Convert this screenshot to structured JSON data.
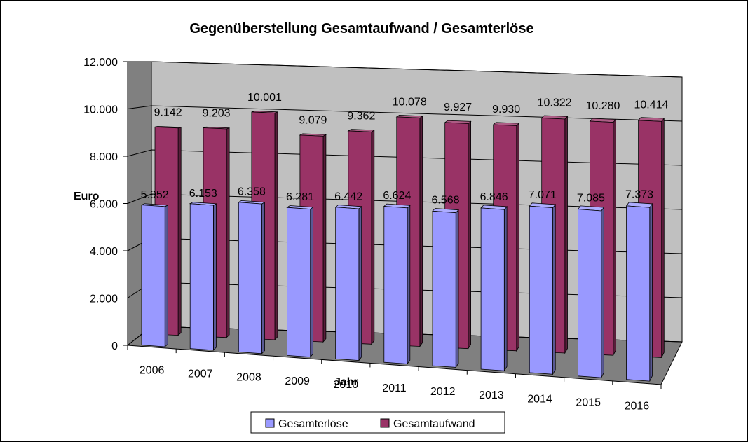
{
  "chart_data": {
    "type": "bar",
    "style": "3d-clustered-column",
    "title": "Gegenüberstellung Gesamtaufwand / Gesamterlöse",
    "xlabel": "Jahr",
    "ylabel": "Euro",
    "ylim": [
      0,
      12000
    ],
    "yticks": [
      "0",
      "2.000",
      "4.000",
      "6.000",
      "8.000",
      "10.000",
      "12.000"
    ],
    "categories": [
      "2006",
      "2007",
      "2008",
      "2009",
      "2010",
      "2011",
      "2012",
      "2013",
      "2014",
      "2015",
      "2016"
    ],
    "grid": true,
    "legend_position": "bottom",
    "series": [
      {
        "name": "Gesamterlöse",
        "color": "#9999ff",
        "values": [
          5952,
          6153,
          6358,
          6281,
          6442,
          6624,
          6568,
          6846,
          7071,
          7085,
          7373
        ],
        "labels": [
          "5.952",
          "6.153",
          "6.358",
          "6.281",
          "6.442",
          "6.624",
          "6.568",
          "6.846",
          "7.071",
          "7.085",
          "7.373"
        ]
      },
      {
        "name": "Gesamtaufwand",
        "color": "#993366",
        "values": [
          9142,
          9203,
          10001,
          9079,
          9362,
          10078,
          9927,
          9930,
          10322,
          10280,
          10414
        ],
        "labels": [
          "9.142",
          "9.203",
          "10.001",
          "9.079",
          "9.362",
          "10.078",
          "9.927",
          "9.930",
          "10.322",
          "10.280",
          "10.414"
        ]
      }
    ]
  },
  "colors": {
    "wall": "#c0c0c0",
    "side_wall": "#808080",
    "floor": "#808080",
    "gridline": "#000000"
  }
}
